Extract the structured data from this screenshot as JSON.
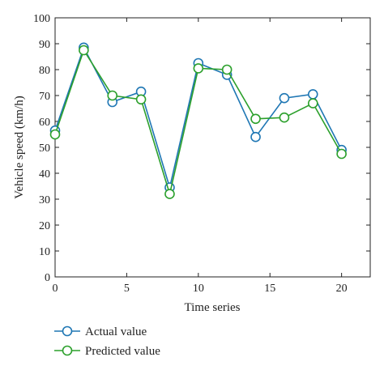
{
  "chart_data": {
    "type": "line",
    "title": "",
    "xlabel": "Time series",
    "ylabel": "Vehicle speed (km/h)",
    "xlim": [
      0,
      22
    ],
    "ylim": [
      0,
      100
    ],
    "xticks": [
      0,
      5,
      10,
      15,
      20
    ],
    "yticks": [
      0,
      10,
      20,
      30,
      40,
      50,
      60,
      70,
      80,
      90,
      100
    ],
    "grid": false,
    "legend_position": "bottom-left",
    "x": [
      0,
      2,
      4,
      6,
      8,
      10,
      12,
      14,
      16,
      18,
      20
    ],
    "series": [
      {
        "name": "Actual value",
        "color": "#1f77b4",
        "marker": "circle-open",
        "values": [
          56.5,
          88.5,
          67.5,
          71.5,
          34.5,
          82.5,
          78,
          54,
          69,
          70.5,
          49
        ]
      },
      {
        "name": "Predicted value",
        "color": "#2ca02c",
        "marker": "circle-open",
        "values": [
          55,
          87.5,
          70,
          68.5,
          32,
          80.5,
          80,
          61,
          61.5,
          67,
          47.5
        ]
      }
    ]
  }
}
